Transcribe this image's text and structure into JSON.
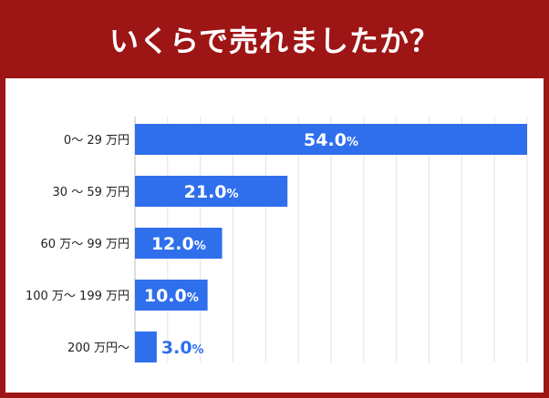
{
  "title": "いくらで売れましたか？",
  "colors": {
    "background": "#9e1515",
    "panel": "#ffffff",
    "bar": "#2f6fec",
    "label_inside": "#ffffff",
    "label_outside": "#2f6fec",
    "grid": "#e3e3e3"
  },
  "chart_data": {
    "type": "bar",
    "orientation": "horizontal",
    "title": "いくらで売れましたか？",
    "categories": [
      "0～ 29 万円",
      "30 ～ 59 万円",
      "60 万～ 99 万円",
      "100 万～ 199 万円",
      "200 万円～"
    ],
    "values": [
      54.0,
      21.0,
      12.0,
      10.0,
      3.0
    ],
    "value_labels": [
      "54.0%",
      "21.0%",
      "12.0%",
      "10.0%",
      "3.0%"
    ],
    "xlabel": "",
    "ylabel": "",
    "xlim": [
      0,
      54
    ],
    "grid": true,
    "legend": "none"
  }
}
